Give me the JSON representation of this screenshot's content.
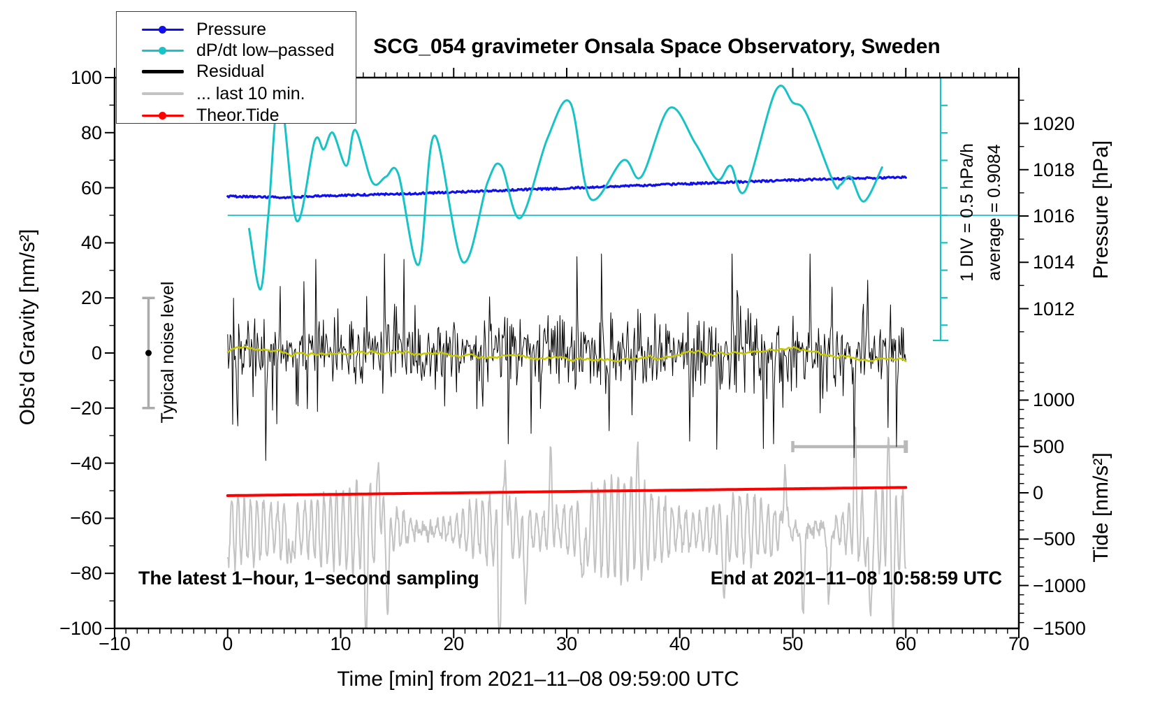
{
  "title": "SCG_054 gravimeter Onsala Space Observatory, Sweden",
  "legend": {
    "items": [
      {
        "label": "Pressure",
        "color": "#1010ee",
        "marker": true,
        "thickness": 3
      },
      {
        "label": "dP/dt low–passed",
        "color": "#17c3c6",
        "marker": true,
        "thickness": 3
      },
      {
        "label": "Residual",
        "color": "#000000",
        "marker": false,
        "thickness": 5
      },
      {
        "label": "... last 10 min.",
        "color": "#c3c3c3",
        "marker": false,
        "thickness": 4
      },
      {
        "label": "Theor.Tide",
        "color": "#ff0000",
        "marker": true,
        "thickness": 3
      }
    ]
  },
  "axes": {
    "x": {
      "title": "Time [min] from 2021–11–08 09:59:00 UTC",
      "min": -10,
      "max": 70,
      "minor_step": 1,
      "majors": [
        -10,
        0,
        10,
        20,
        30,
        40,
        50,
        60,
        70
      ],
      "labels": [
        "−10",
        "0",
        "10",
        "20",
        "30",
        "40",
        "50",
        "60",
        "70"
      ]
    },
    "gravity": {
      "title": "Obs'd Gravity [nm/s²]",
      "min": -100,
      "max": 100,
      "minor_step": 10,
      "majors": [
        100,
        80,
        60,
        40,
        20,
        0,
        -20,
        -40,
        -60,
        -80,
        -100
      ],
      "labels": [
        "100",
        "80",
        "60",
        "40",
        "20",
        "0",
        "−20",
        "−40",
        "−60",
        "−80",
        "−100"
      ]
    },
    "pressure": {
      "title": "Pressure [hPa]",
      "minor_step": 1,
      "majors": [
        1020,
        1018,
        1016,
        1014,
        1012
      ],
      "labels": [
        "1020",
        "1018",
        "1016",
        "1014",
        "1012"
      ],
      "minors": [
        1021,
        1019,
        1017,
        1015,
        1013,
        1011
      ]
    },
    "tide": {
      "title": "Tide [nm/s²]",
      "minor_step": 100,
      "majors": [
        1000,
        500,
        0,
        -500,
        -1000,
        -1500
      ],
      "labels": [
        "1000",
        "500",
        "0",
        "−500",
        "−1000",
        "−1500"
      ],
      "minor_range": [
        1500,
        -1400
      ]
    }
  },
  "annotations": {
    "div_scale": "1 DIV = 0.5 hPa/h",
    "average": "average = 0.9084",
    "noise_level": "Typical noise level",
    "footer_left": "The latest 1–hour, 1–second sampling",
    "footer_right": "End at 2021–11–08 10:58:59 UTC"
  },
  "chart_data": {
    "type": "line",
    "title": "SCG_054 gravimeter Onsala Space Observatory, Sweden",
    "xlabel": "Time [min] from 2021-11-08 09:59:00 UTC",
    "x_range": [
      -10,
      70
    ],
    "gravity_range": [
      -100,
      100
    ],
    "grid": false,
    "legend_position": "top-left",
    "series": [
      {
        "name": "Pressure",
        "unit": "hPa",
        "color": "#1010ee",
        "axis": "pressure",
        "points": [
          [
            0,
            1016.85
          ],
          [
            3,
            1016.82
          ],
          [
            5,
            1016.81
          ],
          [
            7,
            1016.84
          ],
          [
            10,
            1016.89
          ],
          [
            13,
            1016.93
          ],
          [
            16,
            1016.96
          ],
          [
            20,
            1017.03
          ],
          [
            24,
            1017.1
          ],
          [
            28,
            1017.17
          ],
          [
            32,
            1017.24
          ],
          [
            36,
            1017.31
          ],
          [
            40,
            1017.38
          ],
          [
            44,
            1017.45
          ],
          [
            48,
            1017.52
          ],
          [
            52,
            1017.58
          ],
          [
            56,
            1017.63
          ],
          [
            60,
            1017.67
          ]
        ]
      },
      {
        "name": "dP/dt low-passed",
        "unit": "hPa/h",
        "color": "#17c3c6",
        "axis": "dpdt",
        "baseline_average": 0.9084,
        "div_value": 0.5,
        "points": [
          [
            1.9,
            0.66
          ],
          [
            2.9,
            -0.44
          ],
          [
            3.6,
            0.91
          ],
          [
            4.6,
            3.16
          ],
          [
            6.1,
            0.81
          ],
          [
            7.7,
            2.26
          ],
          [
            8.5,
            2.11
          ],
          [
            9.3,
            2.41
          ],
          [
            10.5,
            1.81
          ],
          [
            11.3,
            2.46
          ],
          [
            12.8,
            1.51
          ],
          [
            14.0,
            1.61
          ],
          [
            15.1,
            1.66
          ],
          [
            16.9,
            0.01
          ],
          [
            18.3,
            2.36
          ],
          [
            20.8,
            0.06
          ],
          [
            23.0,
            1.51
          ],
          [
            24.2,
            1.81
          ],
          [
            25.9,
            0.86
          ],
          [
            28.3,
            2.31
          ],
          [
            30.3,
            2.96
          ],
          [
            32.1,
            1.21
          ],
          [
            35.0,
            1.91
          ],
          [
            36.6,
            1.61
          ],
          [
            39.1,
            2.86
          ],
          [
            41.4,
            2.21
          ],
          [
            43.3,
            1.56
          ],
          [
            44.5,
            1.81
          ],
          [
            45.8,
            1.36
          ],
          [
            48.5,
            3.18
          ],
          [
            50.0,
            2.96
          ],
          [
            51.2,
            2.76
          ],
          [
            53.6,
            1.51
          ],
          [
            54.2,
            1.46
          ],
          [
            55.1,
            1.61
          ],
          [
            56.3,
            1.16
          ],
          [
            57.9,
            1.78
          ]
        ]
      },
      {
        "name": "Residual",
        "unit": "nm/s2",
        "color": "#000000",
        "axis": "gravity",
        "stochastic": true,
        "mean": 0,
        "typical_band": [
          -15,
          15
        ],
        "max_excursion": 38,
        "smoothed_line_color": "#c8c800",
        "spikes": [
          [
            3.35,
            -39
          ],
          [
            7.8,
            34
          ],
          [
            13.9,
            36
          ],
          [
            24.8,
            -33
          ],
          [
            30.9,
            35
          ],
          [
            33.1,
            36
          ],
          [
            40.9,
            -32
          ],
          [
            43.3,
            -35
          ],
          [
            44.6,
            36
          ],
          [
            48.3,
            -33
          ],
          [
            51.5,
            36
          ],
          [
            55.4,
            -38
          ],
          [
            59.2,
            -34
          ]
        ]
      },
      {
        "name": "... last 10 min.",
        "unit": "nm/s2",
        "color": "#c3c3c3",
        "axis": "gravity",
        "stochastic": true,
        "display_center": -64,
        "typical_amplitude": 12,
        "wave_period_min": 0.7,
        "down_spikes": [
          [
            5.6,
            -84
          ],
          [
            12.2,
            -96
          ],
          [
            14.2,
            -90
          ],
          [
            24.05,
            -104
          ],
          [
            26.3,
            -88
          ],
          [
            31.5,
            -86
          ],
          [
            44.0,
            -86
          ],
          [
            50.9,
            -96
          ],
          [
            53.2,
            -92
          ],
          [
            56.8,
            -100
          ],
          [
            58.9,
            -88
          ]
        ],
        "up_spikes": [
          [
            13.4,
            -34
          ],
          [
            24.6,
            -32
          ],
          [
            28.6,
            -36
          ],
          [
            36.2,
            -38
          ],
          [
            49.3,
            -34
          ],
          [
            55.5,
            -30
          ],
          [
            58.4,
            -36
          ]
        ]
      },
      {
        "name": "Theor.Tide",
        "unit": "nm/s2",
        "color": "#ff0000",
        "axis": "tide",
        "points": [
          [
            0,
            -30
          ],
          [
            10,
            -16
          ],
          [
            20,
            -1
          ],
          [
            30,
            14
          ],
          [
            40,
            29
          ],
          [
            50,
            44
          ],
          [
            60,
            58
          ]
        ]
      }
    ],
    "noise_bar": {
      "x_min": -7,
      "gravity_range": [
        -20,
        20
      ],
      "dot_gravity": 0
    },
    "segment_bar": {
      "from_min": 50,
      "to_min": 60,
      "gravity": -34
    },
    "dpdt_baseline_gravity": 50,
    "div_scale_bar": {
      "divs": 9,
      "div_hpa_per_h": 0.5
    }
  }
}
